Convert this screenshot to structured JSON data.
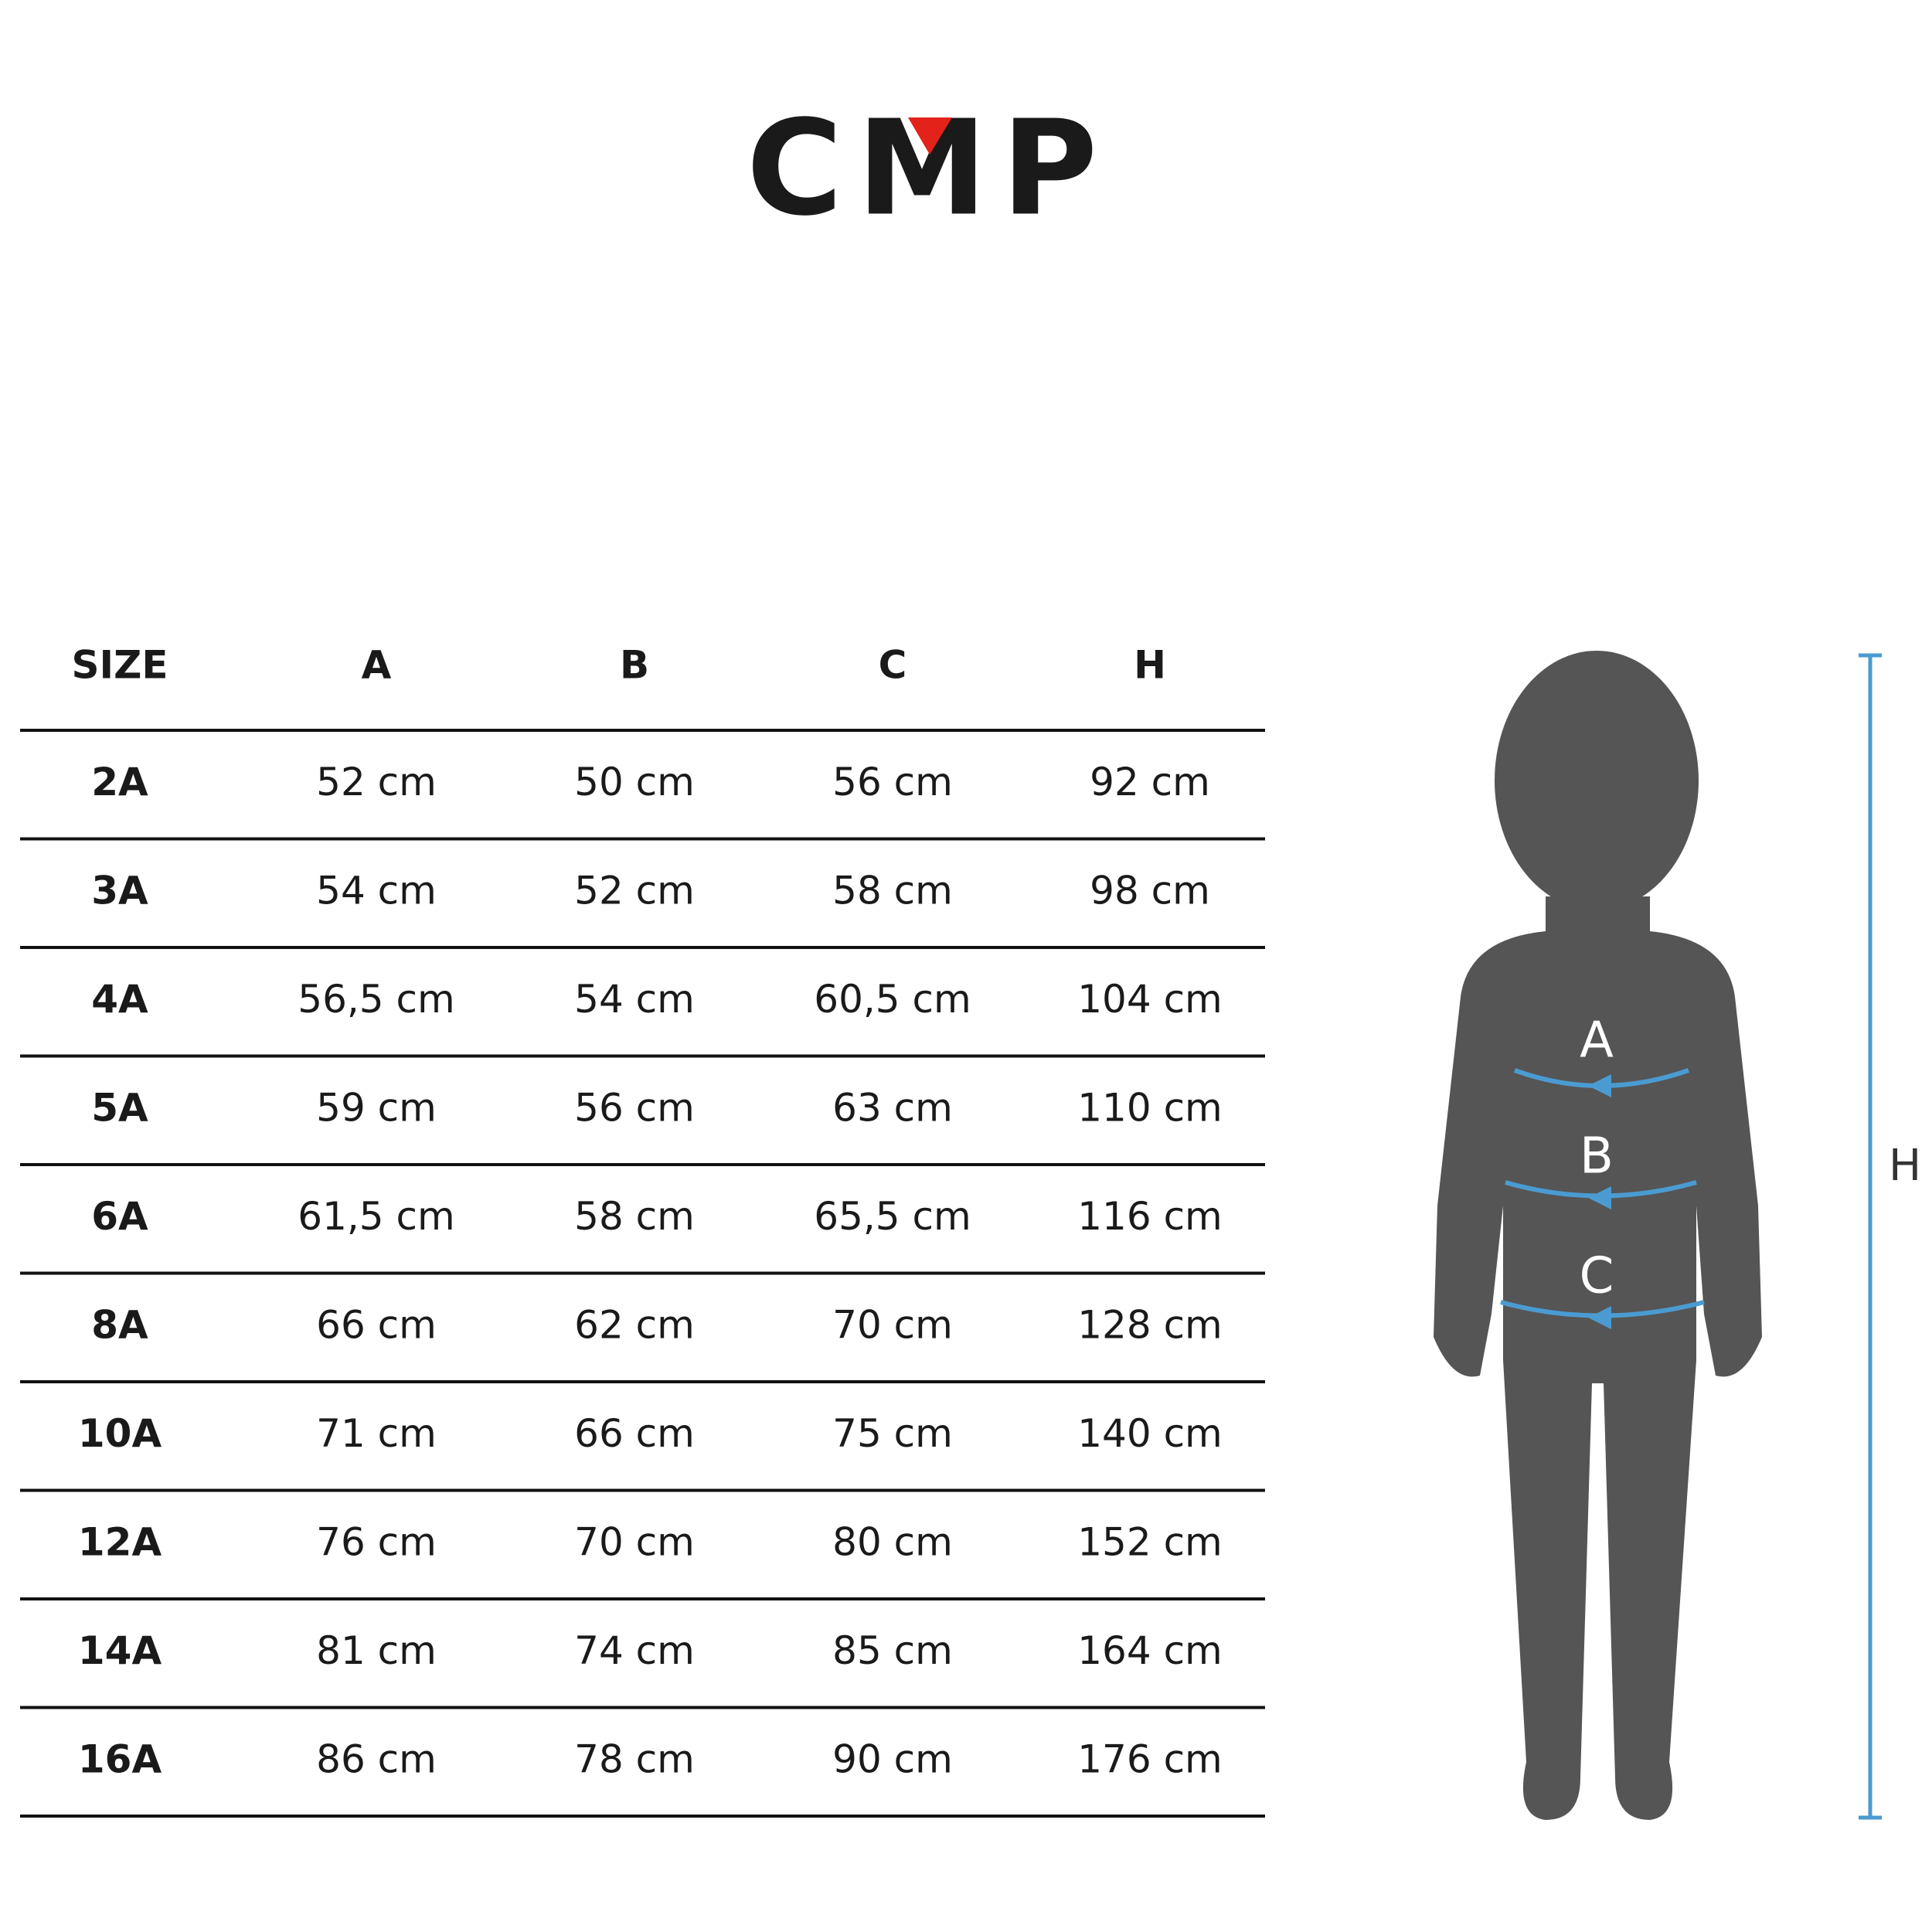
{
  "header": {
    "brand": "CMP"
  },
  "table": {
    "header": [
      "SIZE",
      "A",
      "B",
      "C",
      "H"
    ],
    "rows": [
      [
        "2A",
        "52 cm",
        "50 cm",
        "56 cm",
        "92 cm"
      ],
      [
        "3A",
        "54 cm",
        "52 cm",
        "58 cm",
        "98 cm"
      ],
      [
        "4A",
        "56,5 cm",
        "54 cm",
        "60,5 cm",
        "104 cm"
      ],
      [
        "5A",
        "59 cm",
        "56 cm",
        "63 cm",
        "110 cm"
      ],
      [
        "6A",
        "61,5 cm",
        "58 cm",
        "65,5 cm",
        "116 cm"
      ],
      [
        "8A",
        "66 cm",
        "62 cm",
        "70 cm",
        "128 cm"
      ],
      [
        "10A",
        "71 cm",
        "66 cm",
        "75 cm",
        "140 cm"
      ],
      [
        "12A",
        "76 cm",
        "70 cm",
        "80 cm",
        "152 cm"
      ],
      [
        "14A",
        "81 cm",
        "74 cm",
        "85 cm",
        "164 cm"
      ],
      [
        "16A",
        "86 cm",
        "78 cm",
        "90 cm",
        "176 cm"
      ]
    ]
  },
  "figure": {
    "labels": [
      "A",
      "B",
      "C"
    ],
    "height_label": "H"
  }
}
